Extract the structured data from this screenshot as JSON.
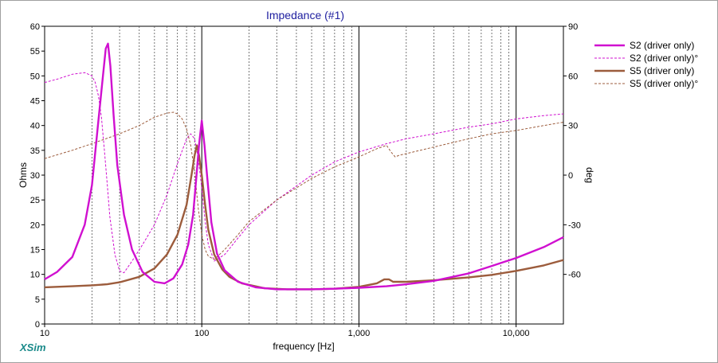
{
  "chart_data": {
    "type": "line",
    "title": "Impedance (#1)",
    "xlabel": "frequency [Hz]",
    "ylabel": "Ohms",
    "y2label": "deg",
    "xscale": "log",
    "xlim": [
      10,
      20000
    ],
    "ylim": [
      0,
      60
    ],
    "y2lim": [
      -90,
      90
    ],
    "grid": true,
    "legend_position": "right",
    "x_ticks": [
      "10",
      "100",
      "1,000",
      "10,000"
    ],
    "x_tick_values": [
      10,
      100,
      1000,
      10000
    ],
    "y_ticks": [
      0,
      5,
      10,
      15,
      20,
      25,
      30,
      35,
      40,
      45,
      50,
      55,
      60
    ],
    "y2_ticks": [
      -60,
      -30,
      0,
      30,
      60,
      90
    ],
    "brand": "XSim",
    "series": [
      {
        "name": "S2 (driver only)",
        "axis": "left",
        "color": "#d010d0",
        "dash": false,
        "width": 2.4,
        "x": [
          10,
          12,
          15,
          18,
          20,
          22,
          23.5,
          24.5,
          25.3,
          26.2,
          27.5,
          29,
          32,
          36,
          42,
          50,
          58,
          66,
          75,
          82,
          88,
          92,
          96,
          100,
          104,
          108,
          115,
          125,
          140,
          170,
          220,
          300,
          400,
          500,
          700,
          1000,
          1500,
          2000,
          3000,
          5000,
          7000,
          10000,
          15000,
          20000
        ],
        "y": [
          9,
          10.5,
          13.5,
          20,
          28,
          41,
          50,
          55.5,
          56.5,
          52,
          42,
          32,
          22,
          15,
          10.5,
          8.5,
          8.2,
          9.2,
          12,
          16,
          22,
          29,
          36,
          41,
          36,
          30,
          20.5,
          14.2,
          10.8,
          8.5,
          7.4,
          7,
          7,
          7,
          7.1,
          7.3,
          7.6,
          8,
          8.7,
          10.2,
          11.7,
          13.3,
          15.5,
          17.5
        ]
      },
      {
        "name": "S2 (driver only)°",
        "axis": "right",
        "color": "#d010d0",
        "dash": true,
        "width": 1,
        "x": [
          10,
          12,
          15,
          18,
          20,
          21,
          22,
          23,
          24,
          25,
          26,
          28,
          30,
          32,
          36,
          42,
          50,
          60,
          70,
          80,
          85,
          90,
          95,
          100,
          105,
          110,
          120,
          140,
          170,
          200,
          300,
          500,
          700,
          1000,
          1500,
          2000,
          3000,
          5000,
          7000,
          10000,
          15000,
          20000
        ],
        "y": [
          56,
          58,
          61,
          62,
          60,
          56,
          48,
          35,
          15,
          -5,
          -25,
          -48,
          -58,
          -59,
          -52,
          -42,
          -30,
          -12,
          7,
          22,
          25,
          22,
          10,
          -8,
          -28,
          -42,
          -52,
          -48,
          -38,
          -30,
          -15,
          0,
          8,
          14,
          19,
          22,
          25,
          29,
          31,
          34,
          36,
          37
        ]
      },
      {
        "name": "S5 (driver only)",
        "axis": "left",
        "color": "#9c5c3c",
        "dash": false,
        "width": 2.4,
        "x": [
          10,
          15,
          20,
          25,
          30,
          40,
          50,
          60,
          70,
          80,
          86,
          90,
          93,
          96,
          100,
          105,
          110,
          120,
          135,
          150,
          180,
          250,
          350,
          500,
          700,
          1000,
          1300,
          1450,
          1550,
          1650,
          1800,
          2000,
          3000,
          5000,
          7000,
          10000,
          15000,
          20000
        ],
        "y": [
          7.4,
          7.6,
          7.8,
          8,
          8.4,
          9.5,
          11.2,
          14,
          18,
          24,
          30,
          34,
          36,
          34,
          30,
          24,
          19,
          14,
          11,
          9.5,
          8.2,
          7.2,
          7,
          7,
          7.1,
          7.5,
          8.2,
          9,
          9,
          8.5,
          8.5,
          8.5,
          8.8,
          9.4,
          9.9,
          10.7,
          11.8,
          12.9
        ]
      },
      {
        "name": "S5 (driver only)°",
        "axis": "right",
        "color": "#9c5c3c",
        "dash": true,
        "width": 1,
        "x": [
          10,
          15,
          20,
          30,
          40,
          50,
          60,
          66,
          70,
          75,
          80,
          85,
          90,
          95,
          100,
          105,
          110,
          120,
          140,
          170,
          200,
          300,
          500,
          700,
          1000,
          1300,
          1500,
          1600,
          1700,
          1800,
          2000,
          3000,
          5000,
          7000,
          10000,
          15000,
          20000
        ],
        "y": [
          10,
          15,
          19,
          25,
          30,
          35,
          37.5,
          38,
          37,
          34,
          28,
          18,
          2,
          -20,
          -36,
          -45,
          -49,
          -51,
          -45,
          -36,
          -28,
          -15,
          -2,
          5,
          11,
          16,
          18,
          14,
          11,
          12,
          13,
          17,
          22,
          25,
          27,
          30,
          32
        ]
      }
    ]
  }
}
